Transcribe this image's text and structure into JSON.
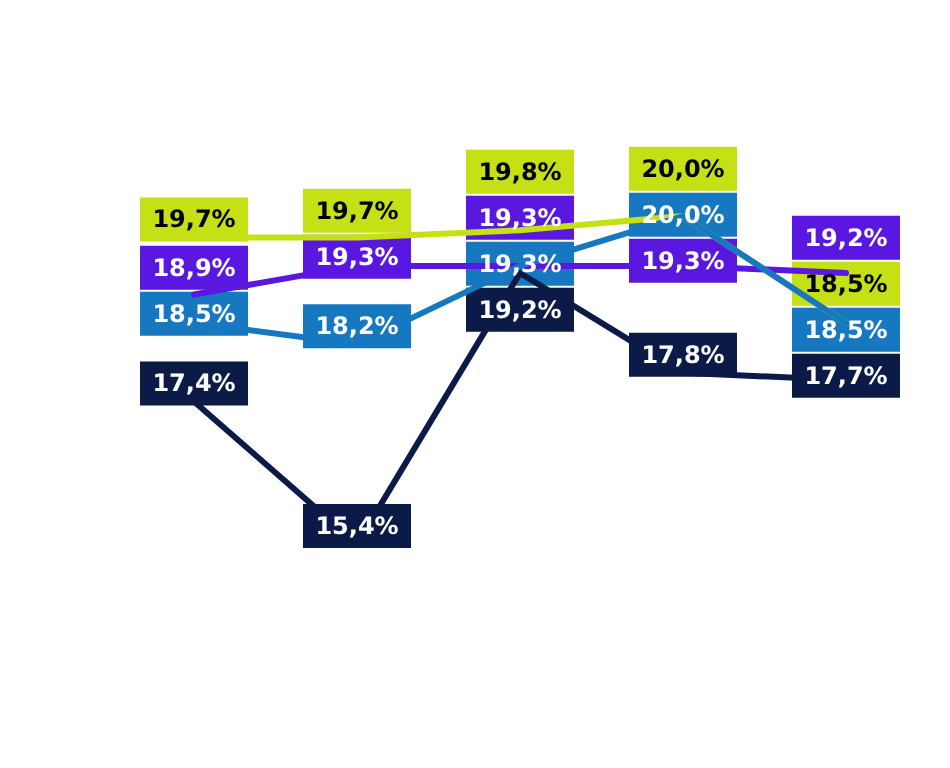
{
  "chart_data": {
    "type": "line",
    "categories": [
      null,
      null,
      null,
      null,
      null
    ],
    "line_style": "solid",
    "series": [
      {
        "color": "#c5e015",
        "values": [
          19.7,
          19.7,
          19.8,
          20.0,
          18.5
        ],
        "value_labels": [
          "19,7%",
          "19,7%",
          "19,8%",
          "20,0%",
          "18,5%"
        ]
      },
      {
        "color": "#5a17e0",
        "values": [
          18.9,
          19.3,
          19.3,
          19.3,
          19.2
        ],
        "value_labels": [
          "18,9%",
          "19,3%",
          "19,3%",
          "19,3%",
          "19,2%"
        ]
      },
      {
        "color": "#1778c2",
        "values": [
          18.5,
          18.2,
          19.3,
          20.0,
          18.5
        ],
        "value_labels": [
          "18,5%",
          "18,2%",
          "19,3%",
          "20,0%",
          "18,5%"
        ]
      },
      {
        "color": "#0b1a47",
        "values": [
          17.4,
          15.4,
          19.2,
          17.8,
          17.7
        ],
        "value_labels": [
          "17,4%",
          "15,4%",
          "19,2%",
          "17,8%",
          "17,7%"
        ]
      }
    ]
  }
}
